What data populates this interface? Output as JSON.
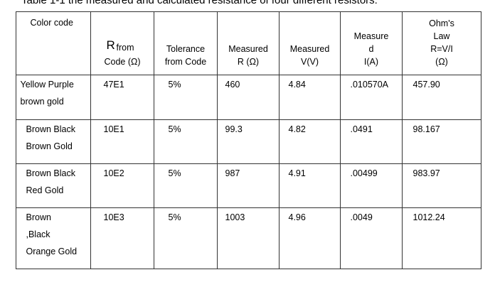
{
  "caption": "Table 1-1 the measured and calculated resistance of four different resistors:",
  "table": {
    "header": [
      [
        "Color code"
      ],
      [
        "R",
        "from",
        "Code (Ω)"
      ],
      [
        "Tolerance",
        "from Code"
      ],
      [
        "Measured",
        "R (Ω)"
      ],
      [
        "Measured",
        "V(V)"
      ],
      [
        "Measure",
        "d",
        "I(A)"
      ],
      [
        "Ohm's",
        "Law",
        "R=V/I",
        "(Ω)"
      ]
    ],
    "rows": [
      [
        [
          "Yellow Purple",
          "brown gold"
        ],
        "47E1",
        "5%",
        "460",
        "4.84",
        ".010570A",
        "457.90"
      ],
      [
        [
          "Brown Black",
          "Brown Gold"
        ],
        "10E1",
        "5%",
        "99.3",
        "4.82",
        ".0491",
        "98.167"
      ],
      [
        [
          "Brown Black",
          "Red Gold"
        ],
        "10E2",
        "5%",
        "987",
        "4.91",
        ".00499",
        "983.97"
      ],
      [
        [
          "Brown",
          ",Black",
          "Orange Gold"
        ],
        "10E3",
        "5%",
        "1003",
        "4.96",
        ".0049",
        "1012.24"
      ]
    ]
  }
}
